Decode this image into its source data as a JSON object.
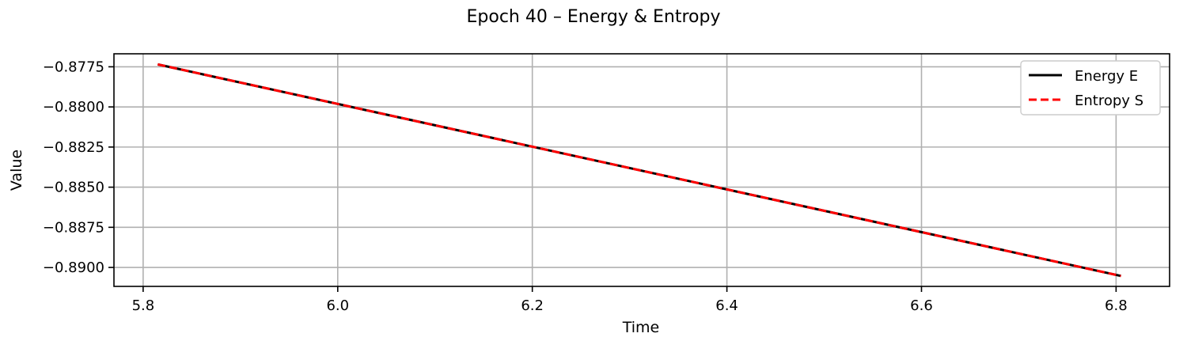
{
  "chart_data": {
    "type": "line",
    "title": "Epoch 40 – Energy & Entropy",
    "xlabel": "Time",
    "ylabel": "Value",
    "xlim": [
      5.77,
      6.855
    ],
    "ylim": [
      -0.89118,
      -0.87669
    ],
    "xticks": [
      5.8,
      6.0,
      6.2,
      6.4,
      6.6,
      6.8
    ],
    "xtick_labels": [
      "5.8",
      "6.0",
      "6.2",
      "6.4",
      "6.6",
      "6.8"
    ],
    "yticks": [
      -0.8775,
      -0.88,
      -0.8825,
      -0.885,
      -0.8875,
      -0.89
    ],
    "ytick_labels": [
      "−0.8775",
      "−0.8800",
      "−0.8825",
      "−0.8850",
      "−0.8875",
      "−0.8900"
    ],
    "grid": true,
    "legend_position": "top-right",
    "series": [
      {
        "name": "Energy E",
        "color": "#000000",
        "style": "solid",
        "x": [
          5.815,
          6.805
        ],
        "y": [
          -0.87735,
          -0.89053
        ]
      },
      {
        "name": "Entropy S",
        "color": "#ff0000",
        "style": "dashed",
        "x": [
          5.815,
          6.805
        ],
        "y": [
          -0.87735,
          -0.89053
        ]
      }
    ]
  }
}
